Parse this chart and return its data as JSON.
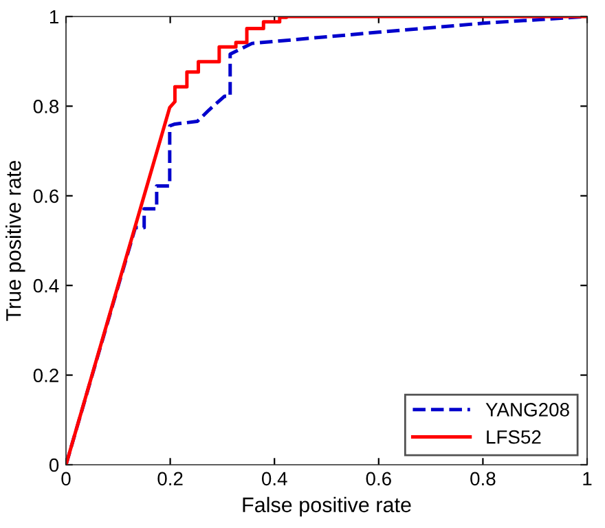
{
  "chart_data": {
    "type": "line",
    "xlabel": "False positive rate",
    "ylabel": "True positive rate",
    "xlim": [
      0,
      1
    ],
    "ylim": [
      0,
      1
    ],
    "xticks": [
      0,
      0.2,
      0.4,
      0.6,
      0.8,
      1
    ],
    "yticks": [
      0,
      0.2,
      0.4,
      0.6,
      0.8,
      1
    ],
    "grid": false,
    "legend": "bottom right",
    "marker": "none",
    "series": [
      {
        "name": "YANG208",
        "color": "#0000cc",
        "line_style": "dashed",
        "x": [
          0,
          0.133,
          0.15,
          0.15,
          0.174,
          0.174,
          0.199,
          0.199,
          0.209,
          0.252,
          0.274,
          0.304,
          0.315,
          0.315,
          0.357,
          0.6,
          0.8,
          1
        ],
        "values": [
          0,
          0.529,
          0.529,
          0.571,
          0.571,
          0.622,
          0.622,
          0.756,
          0.76,
          0.766,
          0.791,
          0.822,
          0.822,
          0.916,
          0.94,
          0.965,
          0.985,
          1
        ]
      },
      {
        "name": "LFS52",
        "color": "#ff0000",
        "line_style": "solid",
        "x": [
          0,
          0.199,
          0.209,
          0.209,
          0.232,
          0.232,
          0.254,
          0.254,
          0.294,
          0.294,
          0.326,
          0.326,
          0.347,
          0.347,
          0.379,
          0.379,
          0.41,
          0.41,
          0.423,
          0.423,
          1
        ],
        "values": [
          0,
          0.797,
          0.81,
          0.843,
          0.843,
          0.876,
          0.876,
          0.899,
          0.899,
          0.932,
          0.932,
          0.942,
          0.942,
          0.973,
          0.973,
          0.988,
          0.988,
          0.998,
          0.998,
          1,
          1
        ]
      }
    ]
  }
}
